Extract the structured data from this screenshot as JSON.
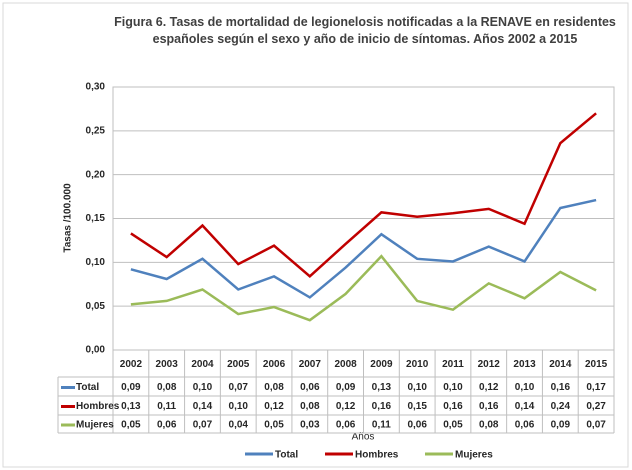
{
  "chart_data": {
    "type": "line",
    "title": "Figura 6. Tasas de mortalidad de legionelosis notificadas a la RENAVE en residentes españoles según el sexo y año de inicio de síntomas. Años 2002 a 2015",
    "xlabel": "Años",
    "ylabel": "Tasas /100.000",
    "categories": [
      "2002",
      "2003",
      "2004",
      "2005",
      "2006",
      "2007",
      "2008",
      "2009",
      "2010",
      "2011",
      "2012",
      "2013",
      "2014",
      "2015"
    ],
    "ylim": [
      0,
      0.3
    ],
    "yticks": [
      {
        "value": 0,
        "label": "0,00"
      },
      {
        "value": 0.05,
        "label": "0,05"
      },
      {
        "value": 0.1,
        "label": "0,10"
      },
      {
        "value": 0.15,
        "label": "0,15"
      },
      {
        "value": 0.2,
        "label": "0,20"
      },
      {
        "value": 0.25,
        "label": "0,25"
      },
      {
        "value": 0.3,
        "label": "0,30"
      }
    ],
    "series": [
      {
        "name": "Total",
        "color": "#4f81bd",
        "values": [
          0.092,
          0.081,
          0.104,
          0.069,
          0.084,
          0.06,
          0.094,
          0.132,
          0.104,
          0.101,
          0.118,
          0.101,
          0.162,
          0.171
        ],
        "value_labels": [
          "0,09",
          "0,08",
          "0,10",
          "0,07",
          "0,08",
          "0,06",
          "0,09",
          "0,13",
          "0,10",
          "0,10",
          "0,12",
          "0,10",
          "0,16",
          "0,17"
        ]
      },
      {
        "name": "Hombres",
        "color": "#c00000",
        "values": [
          0.133,
          0.106,
          0.142,
          0.098,
          0.119,
          0.084,
          0.121,
          0.157,
          0.152,
          0.156,
          0.161,
          0.144,
          0.236,
          0.27
        ],
        "value_labels": [
          "0,13",
          "0,11",
          "0,14",
          "0,10",
          "0,12",
          "0,08",
          "0,12",
          "0,16",
          "0,15",
          "0,16",
          "0,16",
          "0,14",
          "0,24",
          "0,27"
        ]
      },
      {
        "name": "Mujeres",
        "color": "#9bbb59",
        "values": [
          0.052,
          0.056,
          0.069,
          0.041,
          0.049,
          0.034,
          0.064,
          0.107,
          0.056,
          0.046,
          0.076,
          0.059,
          0.089,
          0.068
        ],
        "value_labels": [
          "0,05",
          "0,06",
          "0,07",
          "0,04",
          "0,05",
          "0,03",
          "0,06",
          "0,11",
          "0,06",
          "0,05",
          "0,08",
          "0,06",
          "0,09",
          "0,07"
        ]
      }
    ]
  }
}
